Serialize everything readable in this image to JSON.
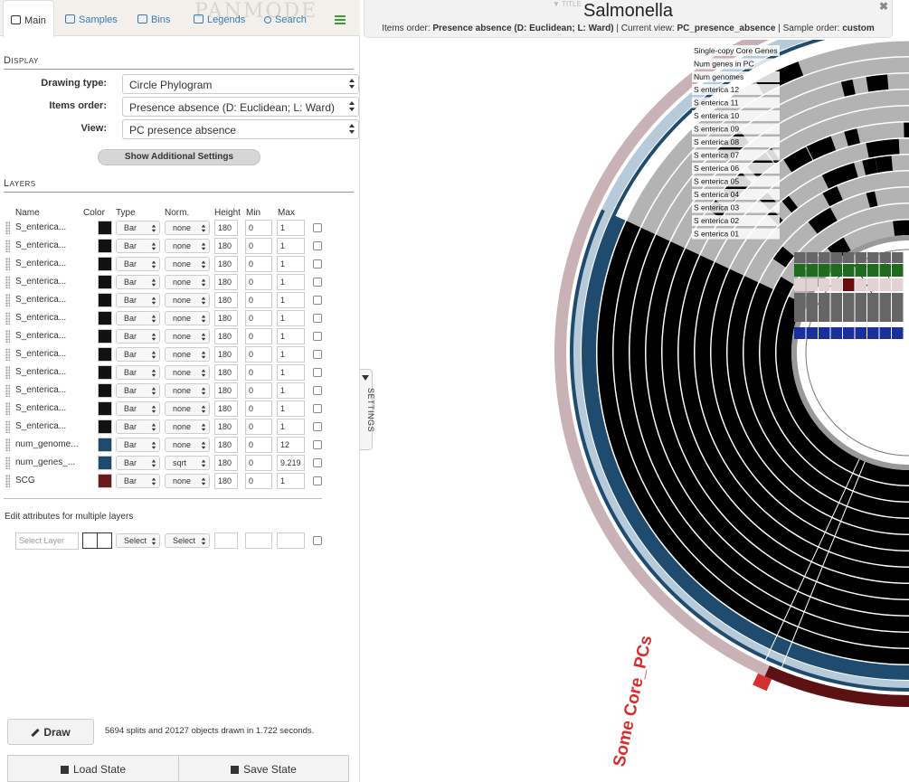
{
  "tabs": [
    {
      "label": "Main",
      "icon": "image-icon",
      "active": true
    },
    {
      "label": "Samples",
      "icon": "users-icon"
    },
    {
      "label": "Bins",
      "icon": "bins-icon"
    },
    {
      "label": "Legends",
      "icon": "list-icon"
    },
    {
      "label": "Search",
      "icon": "search-icon"
    }
  ],
  "watermark": "PANMODE",
  "display": {
    "section_title": "Display",
    "drawing_type_label": "Drawing type:",
    "drawing_type_value": "Circle Phylogram",
    "items_order_label": "Items order:",
    "items_order_value": "Presence absence (D: Euclidean; L: Ward)",
    "view_label": "View:",
    "view_value": "PC presence absence",
    "additional_settings_button": "Show Additional Settings"
  },
  "layers": {
    "section_title": "Layers",
    "headers": {
      "name": "Name",
      "color": "Color",
      "type": "Type",
      "norm": "Norm.",
      "height": "Height",
      "min": "Min",
      "max": "Max"
    },
    "rows": [
      {
        "name": "S_enterica...",
        "color": "#111111",
        "type": "Bar",
        "norm": "none",
        "height": "180",
        "min": "0",
        "max": "1"
      },
      {
        "name": "S_enterica...",
        "color": "#111111",
        "type": "Bar",
        "norm": "none",
        "height": "180",
        "min": "0",
        "max": "1"
      },
      {
        "name": "S_enterica...",
        "color": "#111111",
        "type": "Bar",
        "norm": "none",
        "height": "180",
        "min": "0",
        "max": "1"
      },
      {
        "name": "S_enterica...",
        "color": "#111111",
        "type": "Bar",
        "norm": "none",
        "height": "180",
        "min": "0",
        "max": "1"
      },
      {
        "name": "S_enterica...",
        "color": "#111111",
        "type": "Bar",
        "norm": "none",
        "height": "180",
        "min": "0",
        "max": "1"
      },
      {
        "name": "S_enterica...",
        "color": "#111111",
        "type": "Bar",
        "norm": "none",
        "height": "180",
        "min": "0",
        "max": "1"
      },
      {
        "name": "S_enterica...",
        "color": "#111111",
        "type": "Bar",
        "norm": "none",
        "height": "180",
        "min": "0",
        "max": "1"
      },
      {
        "name": "S_enterica...",
        "color": "#111111",
        "type": "Bar",
        "norm": "none",
        "height": "180",
        "min": "0",
        "max": "1"
      },
      {
        "name": "S_enterica...",
        "color": "#111111",
        "type": "Bar",
        "norm": "none",
        "height": "180",
        "min": "0",
        "max": "1"
      },
      {
        "name": "S_enterica...",
        "color": "#111111",
        "type": "Bar",
        "norm": "none",
        "height": "180",
        "min": "0",
        "max": "1"
      },
      {
        "name": "S_enterica...",
        "color": "#111111",
        "type": "Bar",
        "norm": "none",
        "height": "180",
        "min": "0",
        "max": "1"
      },
      {
        "name": "S_enterica...",
        "color": "#111111",
        "type": "Bar",
        "norm": "none",
        "height": "180",
        "min": "0",
        "max": "1"
      },
      {
        "name": "num_genome...",
        "color": "#1f4b6e",
        "type": "Bar",
        "norm": "none",
        "height": "180",
        "min": "0",
        "max": "12"
      },
      {
        "name": "num_genes_...",
        "color": "#1f4b6e",
        "type": "Bar",
        "norm": "sqrt",
        "height": "180",
        "min": "0",
        "max": "9.219"
      },
      {
        "name": "SCG",
        "color": "#6b1a1a",
        "type": "Bar",
        "norm": "none",
        "height": "180",
        "min": "0",
        "max": "1"
      }
    ],
    "multi_edit_label": "Edit attributes for multiple layers",
    "multi_edit_placeholder": "Select Layer",
    "multi_type": "Select",
    "multi_norm": "Select"
  },
  "footer": {
    "draw_button": "Draw",
    "draw_status": "5694 splits and 20127 objects drawn in 1.722 seconds.",
    "load_state_button": "Load State",
    "save_state_button": "Save State"
  },
  "settings_toggle": "SETTINGS",
  "title_panel": {
    "title": "Salmonella",
    "tag": "▼ TITLE",
    "items_order_prefix": "Items order: ",
    "items_order_value": "Presence absence (D: Euclidean; L: Ward)",
    "current_view_prefix": " | Current view: ",
    "current_view_value": "PC_presence_absence",
    "sample_order_prefix": " | Sample order: ",
    "sample_order_value": "custom"
  },
  "close_symbol": "✖",
  "ring_labels": [
    "Single-copy Core Genes",
    "Num genes in PC",
    "Num genomes",
    "S enterica 12",
    "S enterica 11",
    "S enterica 10",
    "S enterica 09",
    "S enterica 08",
    "S enterica 07",
    "S enterica 06",
    "S enterica 05",
    "S enterica 04",
    "S enterica 03",
    "S enterica 02",
    "S enterica 01"
  ],
  "bin_label": "Some Core_PCs",
  "colors": {
    "presence": "#000000",
    "absence": "#b3b3b3",
    "num_genomes": "#1f4b6e",
    "num_genes": "#b7cad9",
    "scg_ring": "#c9b2b6",
    "scg_dark": "#5c1212",
    "bin_highlight": "#d62f2f",
    "sample_green": "#1e6b1e",
    "sample_blue": "#1a2f99",
    "sample_grey": "#666666",
    "sample_pink": "#e3d2d2",
    "sample_maroon": "#6b0d0d"
  }
}
